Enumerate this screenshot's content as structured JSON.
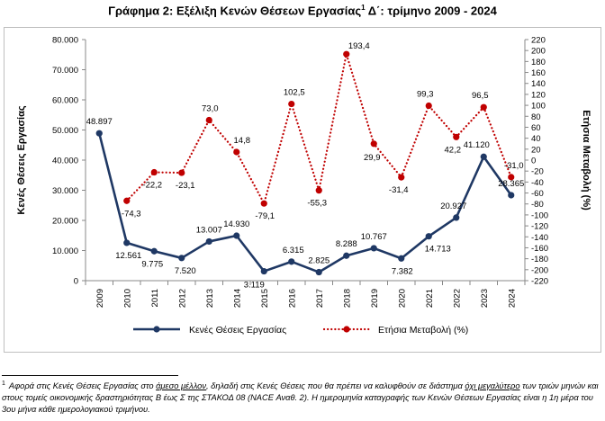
{
  "title": {
    "text": "Γράφημα 2: Εξέλιξη Κενών Θέσεων Εργασίας",
    "superscript": "1",
    "suffix": " Δ΄: τρίμηνο 2009 - 2024"
  },
  "chart_data": {
    "type": "line",
    "categories": [
      "2009",
      "2010",
      "2011",
      "2012",
      "2013",
      "2014",
      "2015",
      "2016",
      "2017",
      "2018",
      "2019",
      "2020",
      "2021",
      "2022",
      "2023",
      "2024"
    ],
    "series": [
      {
        "name": "Κενές Θέσεις Εργασίας",
        "axis": "left",
        "style": "solid",
        "color": "#1f3864",
        "values": [
          48897,
          12561,
          9775,
          7520,
          13007,
          14930,
          3119,
          6315,
          2825,
          8288,
          10767,
          7382,
          14713,
          20927,
          41120,
          28365
        ],
        "labels": [
          "48.897",
          "12.561",
          "9.775",
          "7.520",
          "13.007",
          "14.930",
          "3.119",
          "6.315",
          "2.825",
          "8.288",
          "10.767",
          "7.382",
          "14.713",
          "20.927",
          "41.120",
          "28.365"
        ]
      },
      {
        "name": "Ετήσια Μεταβολή (%)",
        "axis": "right",
        "style": "dotted",
        "color": "#c00000",
        "values": [
          null,
          -74.3,
          -22.2,
          -23.1,
          73.0,
          14.8,
          -79.1,
          102.5,
          -55.3,
          193.4,
          29.9,
          -31.4,
          99.3,
          42.2,
          96.5,
          -31.0
        ],
        "labels": [
          "",
          "-74,3",
          "-22,2",
          "-23,1",
          "73,0",
          "14,8",
          "-79,1",
          "102,5",
          "-55,3",
          "193,4",
          "29,9",
          "-31,4",
          "99,3",
          "42,2",
          "96,5",
          "-31,0"
        ]
      }
    ],
    "ylabel": "Κενές Θέσεις Εργασίας",
    "y2label": "Ετήσια Μεταβολή (%)",
    "ylim": [
      0,
      80000
    ],
    "yticks": [
      0,
      10000,
      20000,
      30000,
      40000,
      50000,
      60000,
      70000,
      80000
    ],
    "ytick_labels": [
      "0",
      "10.000",
      "20.000",
      "30.000",
      "40.000",
      "50.000",
      "60.000",
      "70.000",
      "80.000"
    ],
    "y2lim": [
      -220,
      220
    ],
    "y2ticks": [
      220,
      200,
      180,
      160,
      140,
      120,
      100,
      80,
      60,
      40,
      20,
      0,
      -20,
      -40,
      -60,
      -80,
      -100,
      -120,
      -140,
      -160,
      -180,
      -200,
      -220
    ],
    "y2tick_labels": [
      "220",
      "200",
      "180",
      "160",
      "140",
      "120",
      "100",
      "80",
      "60",
      "40",
      "20",
      "0",
      "-20",
      "-40",
      "-60",
      "-80",
      "-100",
      "-120",
      "-140",
      "-160",
      "-180",
      "-200",
      "-220"
    ],
    "grid": false,
    "legend": "bottom"
  },
  "footnote": {
    "marker": "1",
    "part1": "Αφορά στις Κενές Θέσεις Εργασίας στο ",
    "u1": "άμεσο μέλλον",
    "part2": ", δηλαδή στις Κενές Θέσεις που θα πρέπει να καλυφθούν σε διάστημα ",
    "u2": "όχι μεγαλύτερο",
    "part3": " των τριών μηνών και στους τομείς οικονομικής δραστηριότητας B έως Σ της ΣΤΑΚΟΔ 08 (NACE Αναθ. 2). Η ημερομηνία καταγραφής των Κενών Θέσεων Εργασίας είναι η 1η μέρα του 3ου μήνα κάθε ημερολογιακού τριμήνου."
  }
}
